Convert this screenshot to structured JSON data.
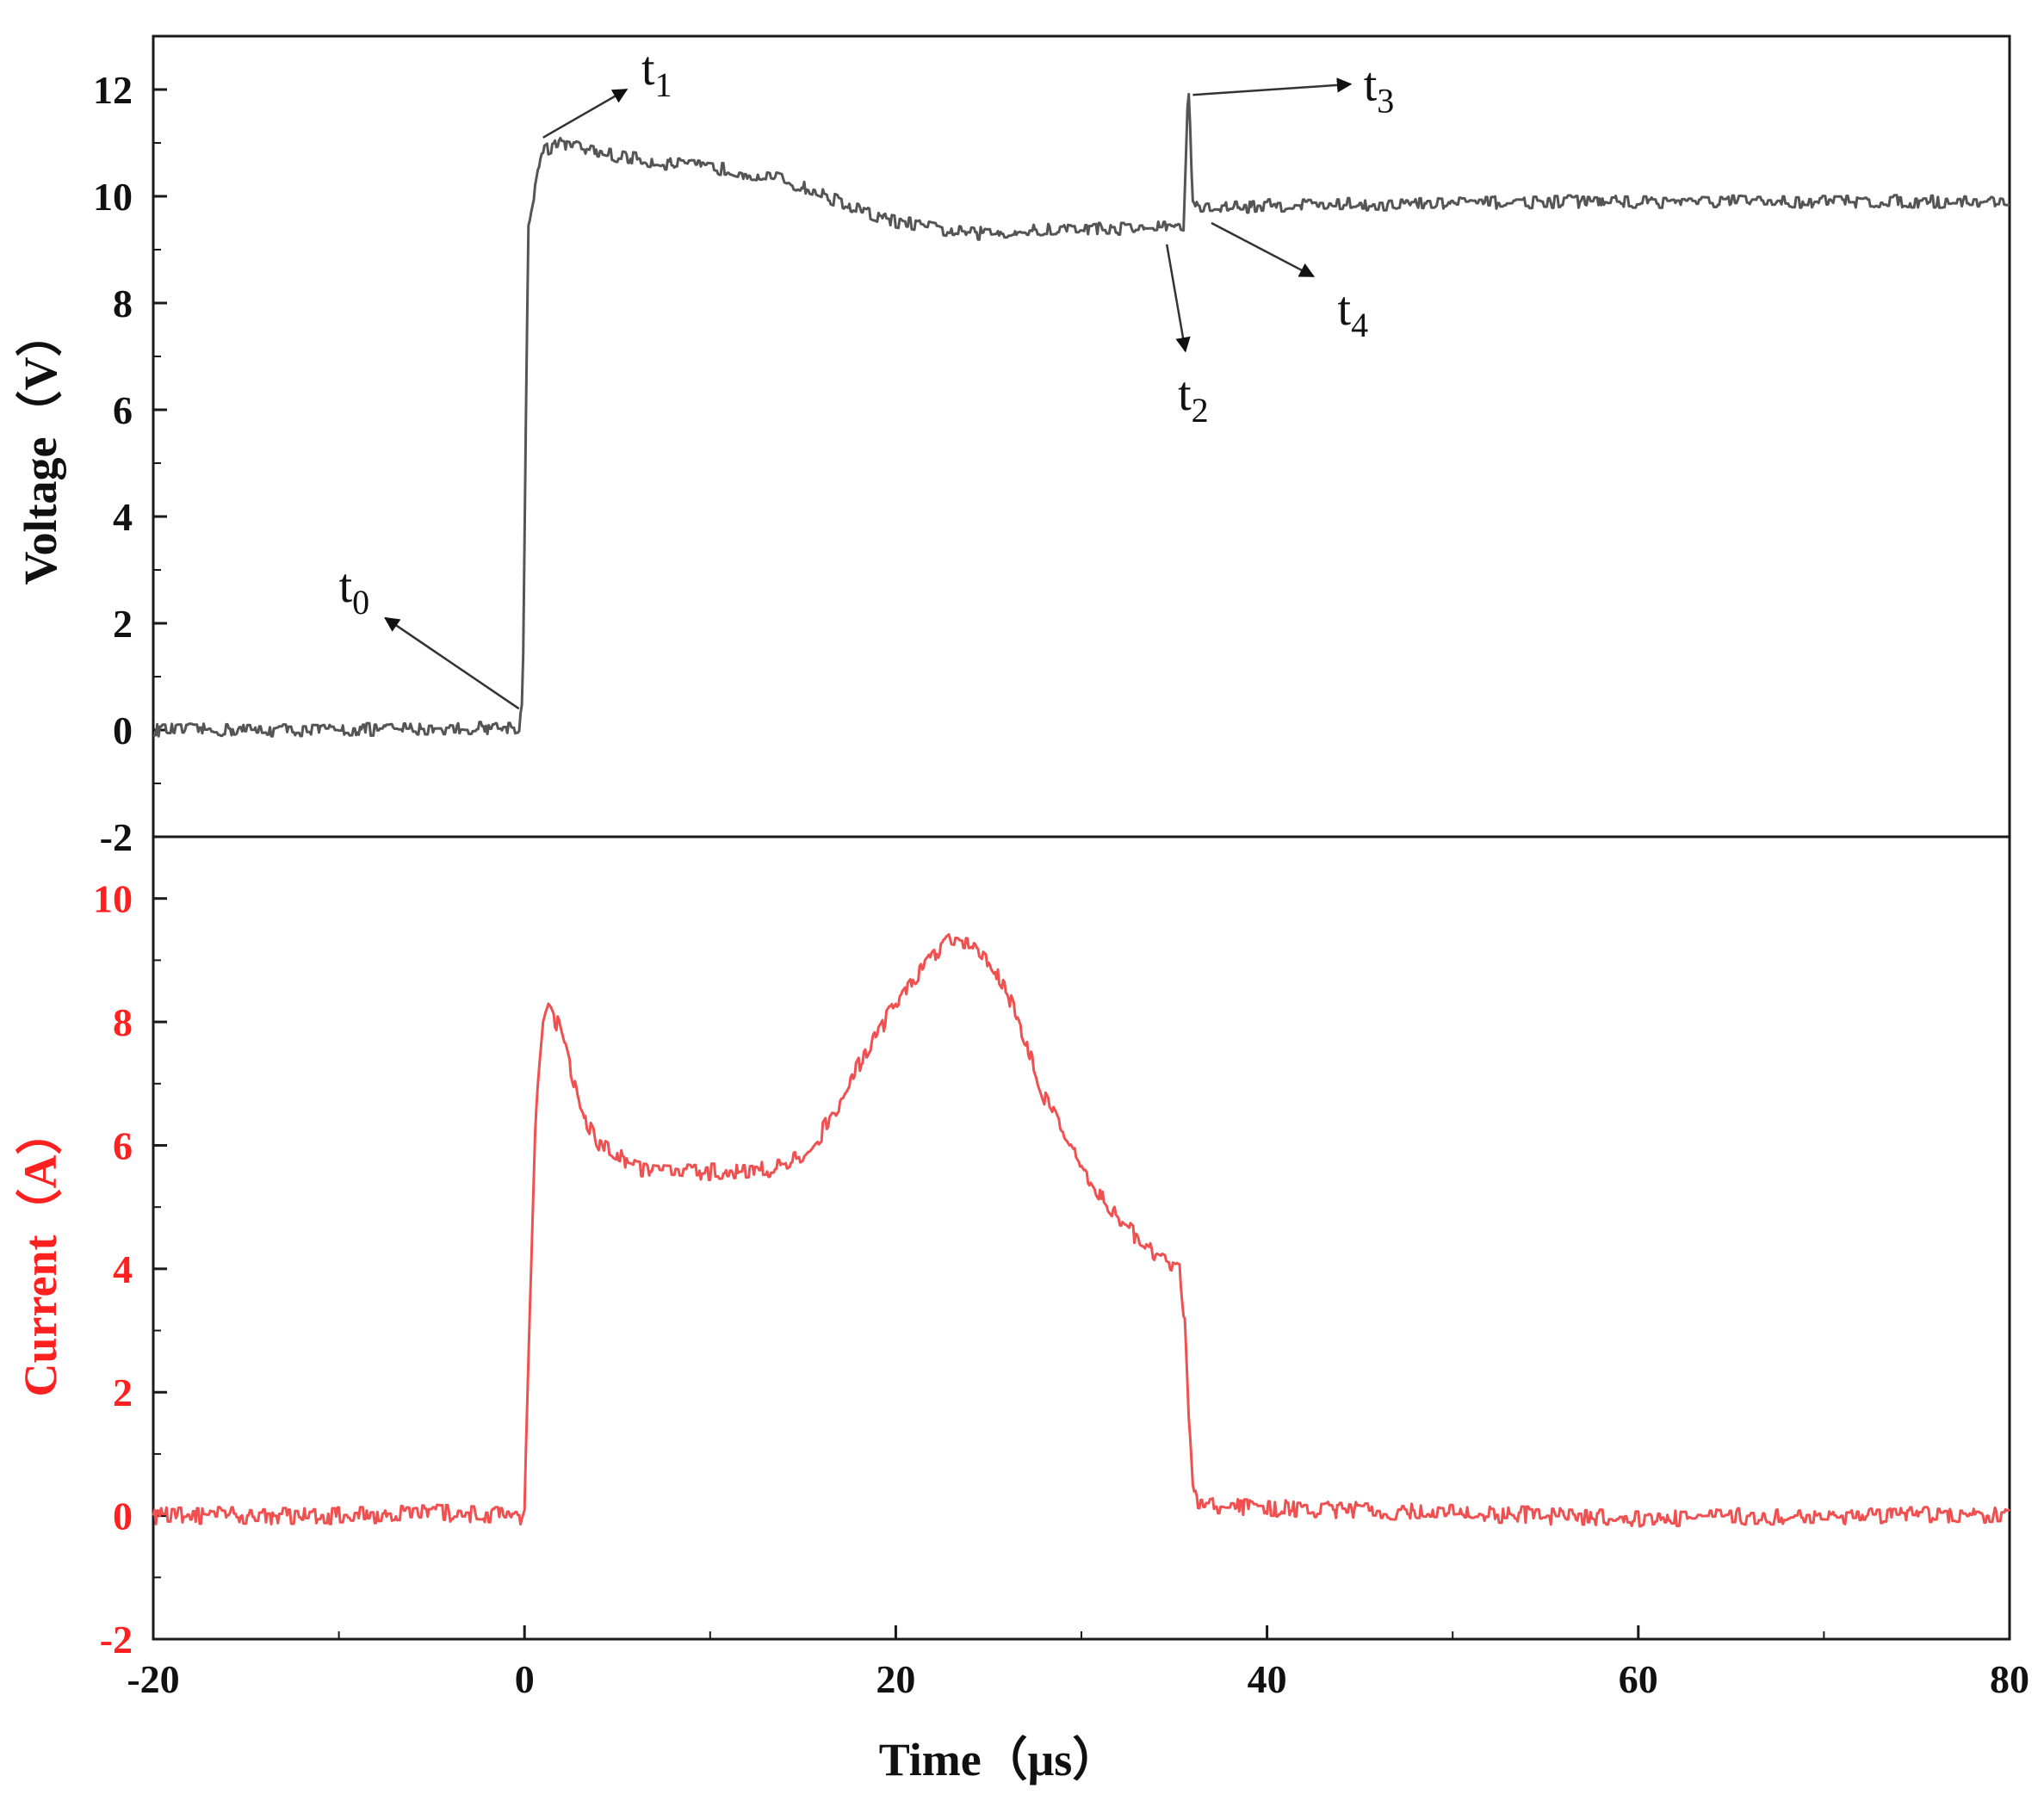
{
  "chart_data": [
    {
      "type": "line",
      "panel": "top",
      "ylabel": "Voltage（V）",
      "xlim": [
        -20,
        80
      ],
      "ylim": [
        -2,
        13
      ],
      "yticks": [
        -2,
        0,
        2,
        4,
        6,
        8,
        10,
        12
      ],
      "line_color": "#555555",
      "label_color": "#111111",
      "series": [
        {
          "x": [
            -20,
            -10,
            -1,
            -0.3,
            -0.1,
            0.2,
            0.5,
            0.9,
            1.3,
            2,
            3,
            5,
            8,
            11,
            14,
            17,
            19,
            22,
            24,
            27,
            30,
            33,
            35,
            35.5,
            35.75,
            36.0,
            36.3,
            38,
            42,
            48,
            55,
            62,
            70,
            80
          ],
          "y": [
            0.0,
            0.0,
            0.05,
            0.05,
            0.5,
            9.5,
            10.0,
            10.8,
            10.9,
            11.0,
            10.9,
            10.75,
            10.6,
            10.5,
            10.3,
            9.9,
            9.6,
            9.4,
            9.3,
            9.35,
            9.4,
            9.4,
            9.45,
            9.4,
            12.1,
            10.0,
            9.75,
            9.8,
            9.85,
            9.85,
            9.9,
            9.9,
            9.9,
            9.9
          ],
          "noise": 0.12
        }
      ],
      "annotations": [
        {
          "base": "t",
          "sub": "0",
          "from": [
            -0.3,
            0.4
          ],
          "to": [
            -7.5,
            2.1
          ],
          "label_at": [
            -10,
            2.4
          ]
        },
        {
          "base": "t",
          "sub": "1",
          "from": [
            1.0,
            11.1
          ],
          "to": [
            5.5,
            12.0
          ],
          "label_at": [
            6.3,
            12.1
          ]
        },
        {
          "base": "t",
          "sub": "2",
          "from": [
            34.6,
            9.1
          ],
          "to": [
            35.6,
            7.1
          ],
          "label_at": [
            35.2,
            6.0
          ]
        },
        {
          "base": "t",
          "sub": "3",
          "from": [
            36.0,
            11.9
          ],
          "to": [
            44.5,
            12.1
          ],
          "label_at": [
            45.2,
            11.8
          ]
        },
        {
          "base": "t",
          "sub": "4",
          "from": [
            37.0,
            9.5
          ],
          "to": [
            42.5,
            8.5
          ],
          "label_at": [
            43.8,
            7.6
          ]
        }
      ]
    },
    {
      "type": "line",
      "panel": "bottom",
      "xlabel": "Time（μs）",
      "ylabel": "Current（A）",
      "xlim": [
        -20,
        80
      ],
      "ylim": [
        -2,
        11
      ],
      "xticks": [
        -20,
        0,
        20,
        40,
        60,
        80
      ],
      "yticks": [
        -2,
        0,
        2,
        4,
        6,
        8,
        10
      ],
      "line_color": "#f05050",
      "label_color": "#ff2020",
      "series": [
        {
          "x": [
            -20,
            -10,
            -5,
            -0.2,
            0.0,
            0.3,
            0.6,
            1.0,
            1.3,
            2,
            3,
            4,
            6,
            9,
            12,
            14,
            15,
            16,
            17,
            18,
            20,
            22,
            23,
            24,
            25,
            26,
            27,
            28,
            29,
            30,
            31,
            32,
            33,
            34,
            35.3,
            35.6,
            35.8,
            36.0,
            36.2,
            38,
            42,
            50,
            55,
            60,
            70,
            80
          ],
          "y": [
            0.0,
            0.0,
            0.05,
            0.0,
            0.2,
            3.5,
            6.5,
            8.0,
            8.3,
            7.8,
            6.6,
            6.0,
            5.65,
            5.55,
            5.6,
            5.65,
            5.85,
            6.2,
            6.7,
            7.3,
            8.3,
            9.1,
            9.35,
            9.3,
            9.0,
            8.5,
            7.7,
            6.8,
            6.2,
            5.7,
            5.2,
            4.8,
            4.5,
            4.2,
            4.0,
            3.0,
            1.5,
            0.5,
            0.2,
            0.15,
            0.1,
            0.05,
            0.0,
            -0.05,
            0.0,
            0.0
          ],
          "noise": 0.14
        }
      ]
    }
  ]
}
